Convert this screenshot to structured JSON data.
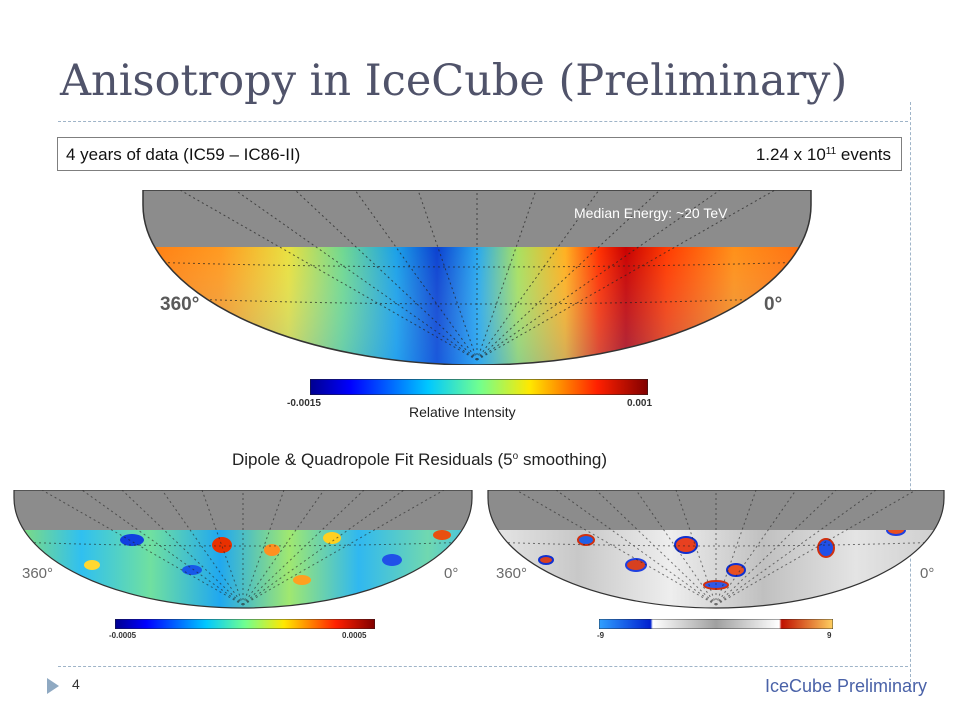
{
  "slide": {
    "title": "Anisotropy in IceCube (Preliminary)",
    "page_number": "4",
    "footer": "IceCube Preliminary"
  },
  "info": {
    "left": "4 years of data (IC59 – IC86-II)",
    "right_base": "1.24 x 10",
    "right_exp": "11",
    "right_unit": " events"
  },
  "main_map": {
    "median_energy": "Median Energy: ~20 TeV",
    "ra_left": "360°",
    "ra_right": "0°",
    "colorbar_min": "-0.0015",
    "colorbar_max": "0.001",
    "colorbar_title": "Relative Intensity"
  },
  "residuals": {
    "heading_pre": "Dipole & Quadropole Fit Residuals (5",
    "heading_deg": "o",
    "heading_post": " smoothing)",
    "left_map": {
      "ra_left": "360°",
      "ra_right": "0°",
      "colorbar_min": "-0.0005",
      "colorbar_max": "0.0005"
    },
    "right_map": {
      "ra_left": "360°",
      "ra_right": "0°",
      "colorbar_min": "-9",
      "colorbar_max": "9"
    }
  },
  "colors": {
    "title": "#50536a",
    "footer": "#4a62a8",
    "mask_gray": "#8c8c8c"
  }
}
